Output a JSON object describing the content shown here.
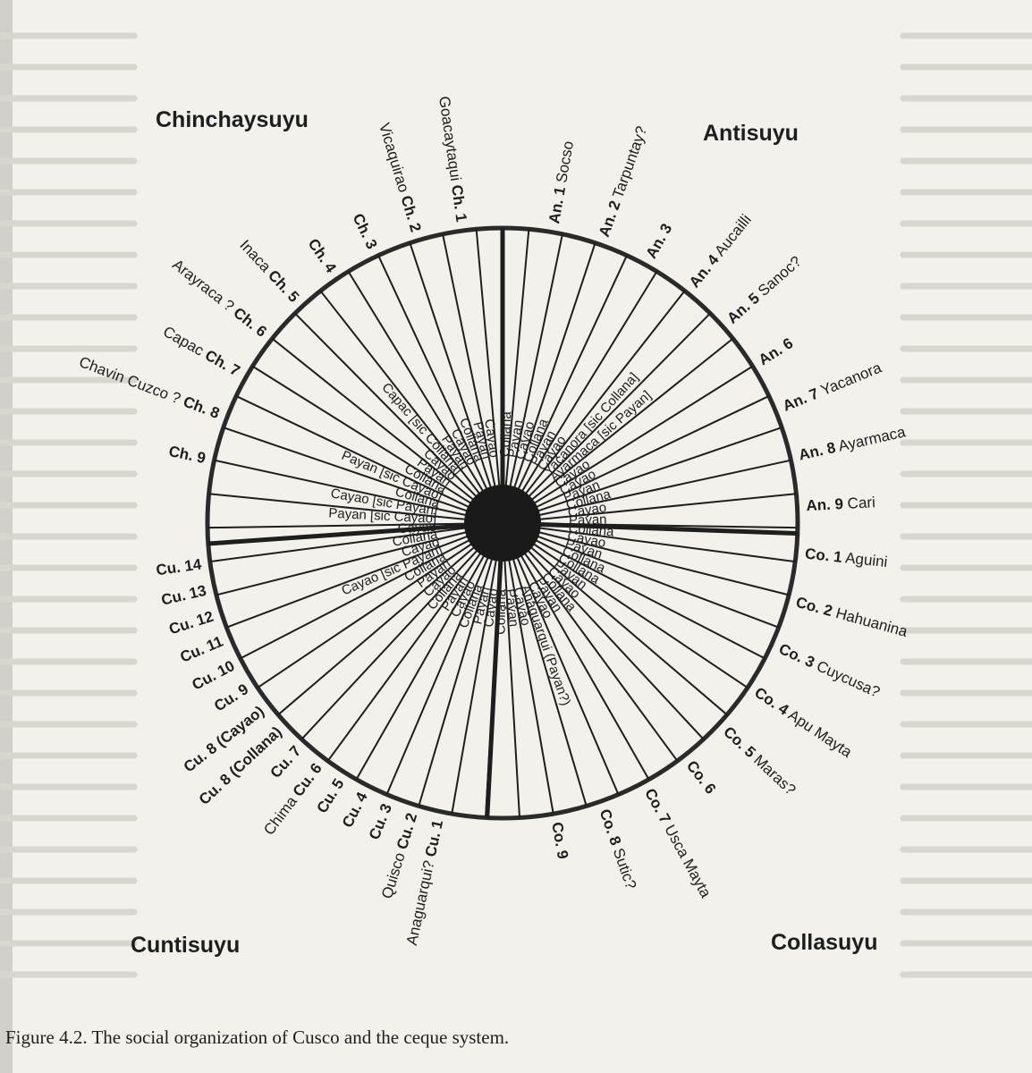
{
  "caption": "Figure 4.2. The social organization of Cusco and the ceque system.",
  "quarters": {
    "chinchaysuyu": "Chinchaysuyu",
    "antisuyu": "Antisuyu",
    "cuntisuyu": "Cuntisuyu",
    "collasuyu": "Collasuyu"
  },
  "colors": {
    "ink": "#1e1e1e",
    "paper": "#f3f1ec",
    "faint_text": "#d9d6cf"
  },
  "outer_labels": [
    {
      "code": "Ch. 1",
      "name": "Goacaytaqui"
    },
    {
      "code": "Ch. 2",
      "name": "Vicaquirao"
    },
    {
      "code": "Ch. 3",
      "name": ""
    },
    {
      "code": "Ch. 4",
      "name": ""
    },
    {
      "code": "Ch. 5",
      "name": "Inaca"
    },
    {
      "code": "Ch. 6",
      "name": "Arayraca ?"
    },
    {
      "code": "Ch. 7",
      "name": "Capac"
    },
    {
      "code": "Ch. 8",
      "name": "Chavin Cuzco ?"
    },
    {
      "code": "Ch. 9",
      "name": ""
    },
    {
      "code": "An. 1",
      "name": "Socso"
    },
    {
      "code": "An. 2",
      "name": "Tarpuntay?"
    },
    {
      "code": "An. 3",
      "name": ""
    },
    {
      "code": "An. 4",
      "name": "Aucailli"
    },
    {
      "code": "An. 5",
      "name": "Sanoc?"
    },
    {
      "code": "An. 6",
      "name": ""
    },
    {
      "code": "An. 7",
      "name": "Yacanora"
    },
    {
      "code": "An. 8",
      "name": "Ayarmaca"
    },
    {
      "code": "An. 9",
      "name": "Cari"
    },
    {
      "code": "Co. 1",
      "name": "Aguini"
    },
    {
      "code": "Co. 2",
      "name": "Hahuanina"
    },
    {
      "code": "Co. 3",
      "name": "Cuycusa?"
    },
    {
      "code": "Co. 4",
      "name": "Apu Mayta"
    },
    {
      "code": "Co. 5",
      "name": "Maras?"
    },
    {
      "code": "Co. 6",
      "name": ""
    },
    {
      "code": "Co. 7",
      "name": "Usca Mayta"
    },
    {
      "code": "Co. 8",
      "name": "Sutic?"
    },
    {
      "code": "Co. 9",
      "name": ""
    },
    {
      "code": "Cu. 1",
      "name": "Anaguarqui?"
    },
    {
      "code": "Cu. 2",
      "name": "Quisco"
    },
    {
      "code": "Cu. 3",
      "name": ""
    },
    {
      "code": "Cu. 4",
      "name": ""
    },
    {
      "code": "Cu. 5",
      "name": ""
    },
    {
      "code": "Cu. 6",
      "name": "Chima"
    },
    {
      "code": "Cu. 7",
      "name": ""
    },
    {
      "code": "Cu. 8 (Collana)",
      "name": ""
    },
    {
      "code": "Cu. 8 (Cayao)",
      "name": ""
    },
    {
      "code": "Cu. 9",
      "name": ""
    },
    {
      "code": "Cu. 10",
      "name": ""
    },
    {
      "code": "Cu. 11",
      "name": ""
    },
    {
      "code": "Cu. 12",
      "name": ""
    },
    {
      "code": "Cu. 13",
      "name": ""
    },
    {
      "code": "Cu. 14",
      "name": ""
    }
  ],
  "inner_labels": [
    "Collana",
    "Payan",
    "Cayao",
    "Collana",
    "Payan",
    "Cayao",
    "Yacanora [sic Collana]",
    "Ayarmaca [sic Payan]",
    "Cayao",
    "Cayao",
    "Payan",
    "Collana",
    "Cayao",
    "Payan",
    "Collana",
    "Cayao",
    "Payan",
    "Collana",
    "Collana",
    "Payan",
    "Cayao",
    "Collana",
    "Payan",
    "Cayao",
    "Anaguarqui (Payan?)",
    "Cayao",
    "Payan",
    "Collana",
    "Cayao",
    "Payan",
    "Collana",
    "Cayao",
    "Payan",
    "Collana",
    "Cayao",
    "Payan",
    "Collana",
    "Cayao [sic Payan]",
    "Cayao",
    "Collana",
    "Cayao",
    "Payan [sic Cayao]",
    "Cayao [sic Payan]",
    "Collana",
    "Payan [sic Cayao]",
    "Collana",
    "Payan",
    "Cayao",
    "Capac [sic Collana]",
    "Payan",
    "Cayao",
    "Collana",
    "Payan",
    "Cayao"
  ]
}
